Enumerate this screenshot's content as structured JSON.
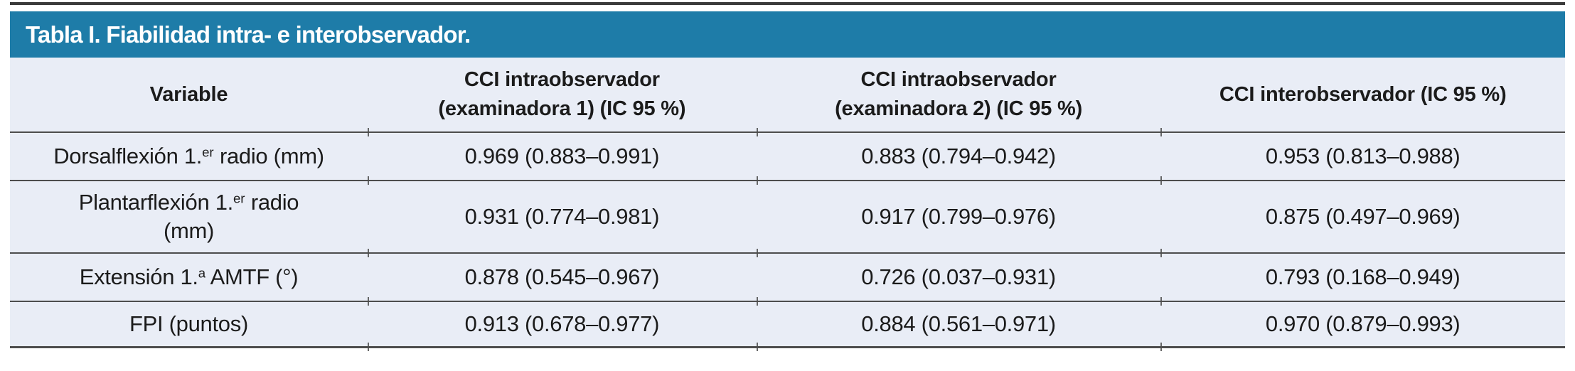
{
  "table": {
    "title": "Tabla I. Fiabilidad intra- e interobservador.",
    "columns": [
      {
        "line1": "Variable",
        "line2": ""
      },
      {
        "line1": "CCI intraobservador",
        "line2": "(examinadora 1) (IC 95 %)"
      },
      {
        "line1": "CCI intraobservador",
        "line2": "(examinadora 2) (IC 95 %)"
      },
      {
        "line1": "CCI interobservador (IC 95 %)",
        "line2": ""
      }
    ],
    "rows": [
      {
        "variable": {
          "pre": "Dorsalflexión 1.",
          "sup": "er",
          "post": " radio (mm)",
          "line2": ""
        },
        "values": [
          "0.969 (0.883–0.991)",
          "0.883 (0.794–0.942)",
          "0.953 (0.813–0.988)"
        ]
      },
      {
        "variable": {
          "pre": "Plantarflexión 1.",
          "sup": "er",
          "post": " radio",
          "line2": "(mm)"
        },
        "values": [
          "0.931 (0.774–0.981)",
          "0.917 (0.799–0.976)",
          "0.875 (0.497–0.969)"
        ]
      },
      {
        "variable": {
          "pre": "Extensión 1.",
          "sup": "a",
          "post": " AMTF (°)",
          "line2": ""
        },
        "values": [
          "0.878 (0.545–0.967)",
          "0.726 (0.037–0.931)",
          "0.793 (0.168–0.949)"
        ]
      },
      {
        "variable": {
          "pre": "FPI (puntos)",
          "sup": "",
          "post": "",
          "line2": ""
        },
        "values": [
          "0.913 (0.678–0.977)",
          "0.884 (0.561–0.971)",
          "0.970 (0.879–0.993)"
        ]
      }
    ]
  },
  "colors": {
    "header_blue": "#1e7ca8",
    "body_background": "#e9edf6",
    "rule_gray": "#4d4d4d",
    "title_text": "#ffffff"
  }
}
